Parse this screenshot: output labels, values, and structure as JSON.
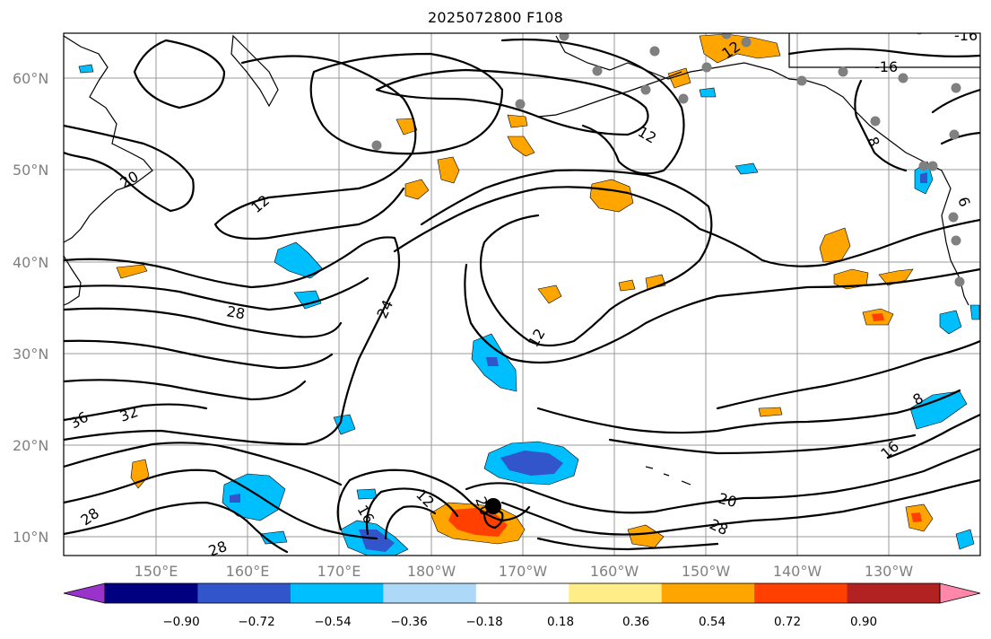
{
  "title": "2025072800 F108",
  "map": {
    "lon_labels": [
      "150°E",
      "160°E",
      "170°E",
      "180°W",
      "170°W",
      "160°W",
      "150°W",
      "140°W",
      "130°W"
    ],
    "lat_labels": [
      "10°N",
      "20°N",
      "30°N",
      "40°N",
      "50°N",
      "60°N"
    ],
    "grid": true,
    "contour_labels": [
      "-16",
      "-16",
      "12",
      "12",
      "20",
      "12",
      "24",
      "28",
      "36",
      "32",
      "28",
      "28",
      "16",
      "12",
      "20",
      "12",
      "8",
      "8",
      "16",
      "6",
      "20",
      "28"
    ],
    "station_marker_color": "#808080",
    "storm_marker_color": "#000000"
  },
  "colorbar": {
    "tick_labels": [
      "−0.90",
      "−0.72",
      "−0.54",
      "−0.36",
      "−0.18",
      "0.18",
      "0.36",
      "0.54",
      "0.72",
      "0.90"
    ],
    "colors": [
      "#9933cc",
      "#000080",
      "#3355cc",
      "#00bfff",
      "#add8f8",
      "#ffffff",
      "#ffee88",
      "#ffa500",
      "#ff4000",
      "#b22222",
      "#ff88aa"
    ]
  }
}
